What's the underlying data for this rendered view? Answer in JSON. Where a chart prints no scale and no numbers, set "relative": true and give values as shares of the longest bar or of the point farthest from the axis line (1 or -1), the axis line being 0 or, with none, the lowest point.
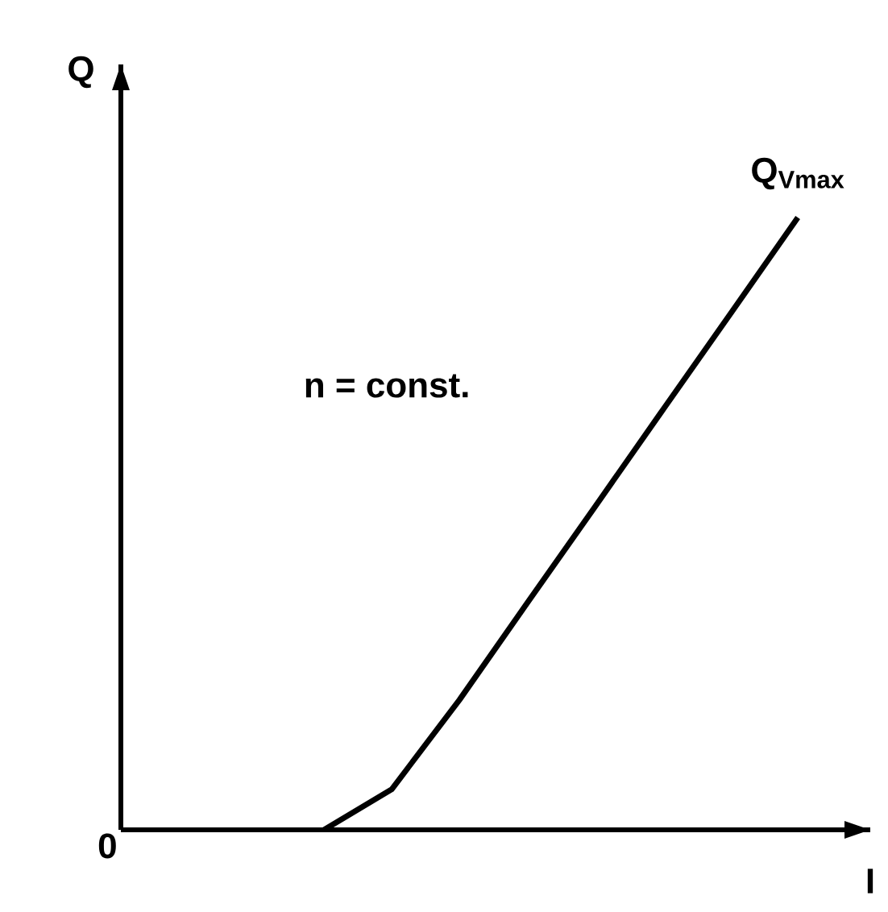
{
  "chart_data": {
    "type": "line",
    "relative": true,
    "xlabel": "I",
    "ylabel": "Q",
    "annotations": [
      "0",
      "n = const."
    ],
    "categories": [
      null,
      null,
      null,
      null,
      null,
      null,
      null,
      null,
      null,
      null,
      null
    ],
    "series": [
      {
        "name": "Q$_{Vmax}$",
        "color": "#000000",
        "values": [
          null,
          null,
          null,
          0,
          0.066,
          0.212,
          0.37,
          0.527,
          0.685,
          0.842,
          1
        ]
      }
    ],
    "marker": "none",
    "line_style": "solid"
  }
}
